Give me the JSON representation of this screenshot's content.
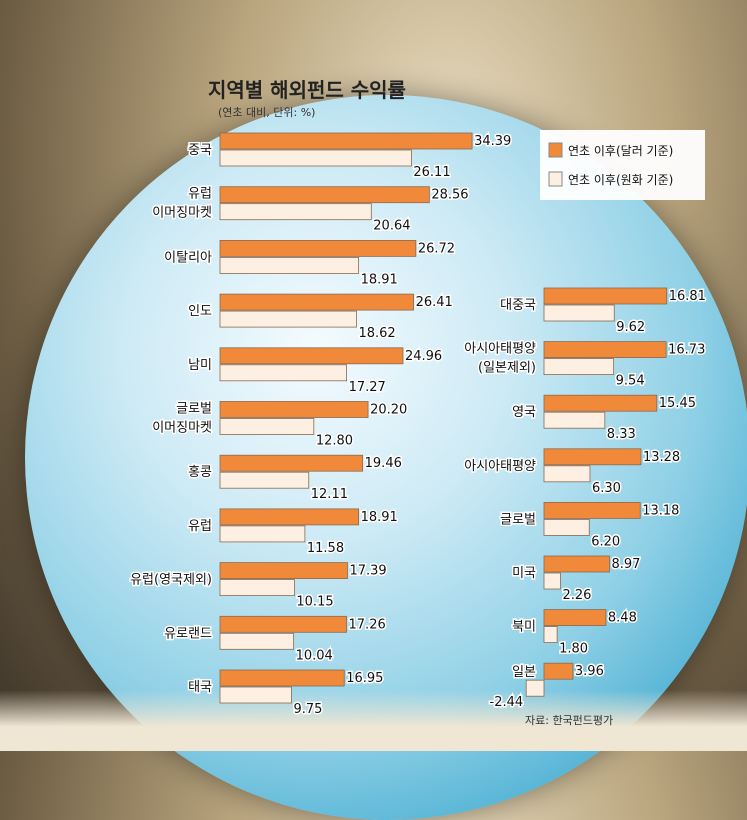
{
  "chart_data": {
    "type": "bar",
    "orientation": "horizontal",
    "title": "지역별 해외펀드 수익률",
    "subtitle": "(연초 대비, 단위: %)",
    "source": "자료: 한국펀드평가",
    "legend": [
      "연초 이후(달러 기준)",
      "연초 이후(원화 기준)"
    ],
    "legend_position": "top-right",
    "colors": {
      "dollar": "#f08a3a",
      "won": "#fdf0e2"
    },
    "groups": [
      {
        "column": "left",
        "categories": [
          [
            "중국"
          ],
          [
            "유럽",
            "이머징마켓"
          ],
          [
            "이탈리아"
          ],
          [
            "인도"
          ],
          [
            "남미"
          ],
          [
            "글로벌",
            "이머징마켓"
          ],
          [
            "홍콩"
          ],
          [
            "유럽"
          ],
          [
            "유럽(영국제외)"
          ],
          [
            "유로랜드"
          ],
          [
            "태국"
          ]
        ],
        "series": [
          {
            "name": "연초 이후(달러 기준)",
            "values": [
              34.39,
              28.56,
              26.72,
              26.41,
              24.96,
              20.2,
              19.46,
              18.91,
              17.39,
              17.26,
              16.95
            ]
          },
          {
            "name": "연초 이후(원화 기준)",
            "values": [
              26.11,
              20.64,
              18.91,
              18.62,
              17.27,
              12.8,
              12.11,
              11.58,
              10.15,
              10.04,
              9.75
            ]
          }
        ]
      },
      {
        "column": "right",
        "categories": [
          [
            "대중국"
          ],
          [
            "아시아태평양",
            "(일본제외)"
          ],
          [
            "영국"
          ],
          [
            "아시아태평양"
          ],
          [
            "글로벌"
          ],
          [
            "미국"
          ],
          [
            "북미"
          ],
          [
            "일본"
          ]
        ],
        "series": [
          {
            "name": "연초 이후(달러 기준)",
            "values": [
              16.81,
              16.73,
              15.45,
              13.28,
              13.18,
              8.97,
              8.48,
              3.96
            ]
          },
          {
            "name": "연초 이후(원화 기준)",
            "values": [
              9.62,
              9.54,
              8.33,
              6.3,
              6.2,
              2.26,
              1.8,
              -2.44
            ]
          }
        ]
      }
    ]
  }
}
